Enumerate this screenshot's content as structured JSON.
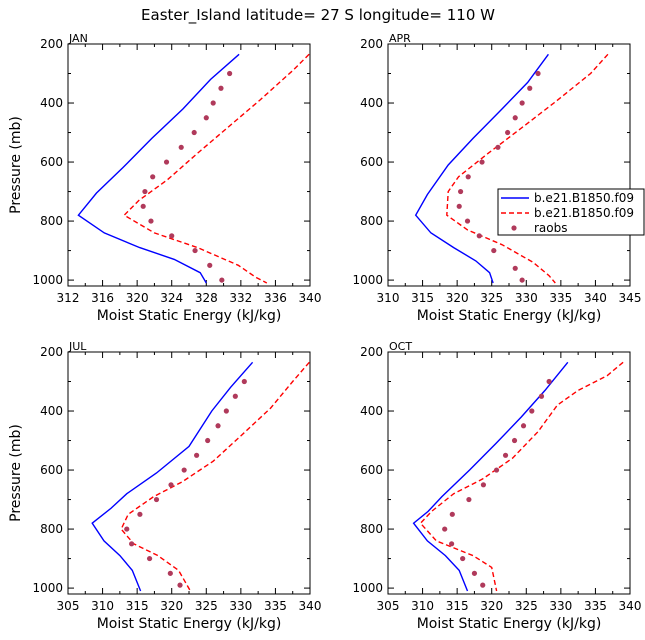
{
  "title": "Easter_Island  latitude= 27 S longitude= 110 W",
  "colors": {
    "series1": "#0000ff",
    "series2": "#ff0000",
    "raobs": "#b03a5b"
  },
  "legend": [
    {
      "label": "b.e21.B1850.f09",
      "style": "solid",
      "color": "#0000ff"
    },
    {
      "label": "b.e21.B1850.f09",
      "style": "dashed",
      "color": "#ff0000"
    },
    {
      "label": "raobs",
      "style": "dots",
      "color": "#b03a5b"
    }
  ],
  "chart_data": [
    {
      "type": "line",
      "panel": "JAN",
      "xlabel": "Moist Static Energy (kJ/kg)",
      "ylabel": "Pressure (mb)",
      "xlim": [
        312,
        340
      ],
      "xticks": [
        312,
        316,
        320,
        324,
        328,
        332,
        336,
        340
      ],
      "ylim": [
        200,
        1020
      ],
      "yticks": [
        200,
        400,
        600,
        800,
        1000
      ],
      "y_inverted": true,
      "series": [
        {
          "style": "solid",
          "color": "#0000ff",
          "points": [
            [
              331.8,
              235
            ],
            [
              328.5,
              320
            ],
            [
              325.3,
              420
            ],
            [
              321.7,
              520
            ],
            [
              318.3,
              620
            ],
            [
              315.3,
              705
            ],
            [
              313.2,
              780
            ],
            [
              316.2,
              840
            ],
            [
              320.3,
              890
            ],
            [
              324.3,
              930
            ],
            [
              327.3,
              975
            ],
            [
              328.0,
              1010
            ]
          ]
        },
        {
          "style": "dashed",
          "color": "#ff0000",
          "points": [
            [
              339.9,
              235
            ],
            [
              338.0,
              290
            ],
            [
              334.2,
              390
            ],
            [
              330.6,
              480
            ],
            [
              327.0,
              570
            ],
            [
              323.5,
              660
            ],
            [
              320.2,
              730
            ],
            [
              318.5,
              780
            ],
            [
              322.0,
              840
            ],
            [
              327.0,
              890
            ],
            [
              331.7,
              950
            ],
            [
              333.7,
              990
            ],
            [
              335.0,
              1010
            ]
          ]
        },
        {
          "style": "dots",
          "color": "#b03a5b",
          "points": [
            [
              330.7,
              300
            ],
            [
              329.7,
              350
            ],
            [
              328.8,
              400
            ],
            [
              328.0,
              450
            ],
            [
              326.6,
              500
            ],
            [
              325.1,
              550
            ],
            [
              323.4,
              600
            ],
            [
              321.8,
              650
            ],
            [
              320.9,
              700
            ],
            [
              320.7,
              750
            ],
            [
              321.6,
              800
            ],
            [
              324.0,
              850
            ],
            [
              326.7,
              900
            ],
            [
              328.4,
              950
            ],
            [
              329.8,
              1000
            ]
          ]
        }
      ]
    },
    {
      "type": "line",
      "panel": "APR",
      "xlabel": "Moist Static Energy (kJ/kg)",
      "ylabel": "",
      "xlim": [
        310,
        345
      ],
      "xticks": [
        310,
        315,
        320,
        325,
        330,
        335,
        340,
        345
      ],
      "ylim": [
        200,
        1020
      ],
      "yticks": [
        200,
        400,
        600,
        800,
        1000
      ],
      "y_inverted": true,
      "series": [
        {
          "style": "solid",
          "color": "#0000ff",
          "points": [
            [
              333.2,
              235
            ],
            [
              330.2,
              330
            ],
            [
              326.5,
              420
            ],
            [
              322.3,
              520
            ],
            [
              318.7,
              610
            ],
            [
              315.7,
              710
            ],
            [
              314.0,
              780
            ],
            [
              316.2,
              840
            ],
            [
              319.5,
              890
            ],
            [
              322.7,
              935
            ],
            [
              324.7,
              975
            ],
            [
              325.2,
              1010
            ]
          ]
        },
        {
          "style": "dashed",
          "color": "#ff0000",
          "points": [
            [
              341.8,
              235
            ],
            [
              339.3,
              300
            ],
            [
              334.0,
              400
            ],
            [
              329.0,
              490
            ],
            [
              324.5,
              570
            ],
            [
              320.2,
              650
            ],
            [
              318.7,
              700
            ],
            [
              318.5,
              780
            ],
            [
              321.5,
              830
            ],
            [
              326.5,
              880
            ],
            [
              331.0,
              940
            ],
            [
              333.3,
              985
            ],
            [
              334.2,
              1010
            ]
          ]
        },
        {
          "style": "dots",
          "color": "#b03a5b",
          "points": [
            [
              331.7,
              300
            ],
            [
              330.5,
              350
            ],
            [
              329.4,
              400
            ],
            [
              328.4,
              450
            ],
            [
              327.3,
              500
            ],
            [
              325.9,
              550
            ],
            [
              323.6,
              600
            ],
            [
              321.6,
              650
            ],
            [
              320.5,
              700
            ],
            [
              320.3,
              750
            ],
            [
              321.5,
              800
            ],
            [
              323.2,
              850
            ],
            [
              325.3,
              900
            ],
            [
              328.4,
              960
            ],
            [
              329.4,
              1000
            ]
          ]
        }
      ]
    },
    {
      "type": "line",
      "panel": "JUL",
      "xlabel": "Moist Static Energy (kJ/kg)",
      "ylabel": "Pressure (mb)",
      "xlim": [
        305,
        340
      ],
      "xticks": [
        305,
        310,
        315,
        320,
        325,
        330,
        335,
        340
      ],
      "ylim": [
        200,
        1020
      ],
      "yticks": [
        200,
        400,
        600,
        800,
        1000
      ],
      "y_inverted": true,
      "series": [
        {
          "style": "solid",
          "color": "#0000ff",
          "points": [
            [
              331.7,
              235
            ],
            [
              328.5,
              320
            ],
            [
              325.8,
              400
            ],
            [
              322.5,
              520
            ],
            [
              317.8,
              610
            ],
            [
              313.5,
              680
            ],
            [
              311.2,
              730
            ],
            [
              308.5,
              780
            ],
            [
              310.2,
              840
            ],
            [
              312.5,
              890
            ],
            [
              314.3,
              940
            ],
            [
              315.5,
              1010
            ]
          ]
        },
        {
          "style": "dashed",
          "color": "#ff0000",
          "points": [
            [
              339.9,
              235
            ],
            [
              337.5,
              300
            ],
            [
              334.3,
              390
            ],
            [
              330.2,
              480
            ],
            [
              326.0,
              570
            ],
            [
              321.5,
              640
            ],
            [
              317.4,
              690
            ],
            [
              313.7,
              750
            ],
            [
              312.7,
              800
            ],
            [
              314.5,
              850
            ],
            [
              318.0,
              890
            ],
            [
              321.0,
              940
            ],
            [
              322.7,
              1010
            ]
          ]
        },
        {
          "style": "dots",
          "color": "#b03a5b",
          "points": [
            [
              330.5,
              300
            ],
            [
              329.2,
              350
            ],
            [
              327.9,
              400
            ],
            [
              326.7,
              450
            ],
            [
              325.2,
              500
            ],
            [
              323.6,
              550
            ],
            [
              321.8,
              600
            ],
            [
              319.9,
              650
            ],
            [
              317.8,
              700
            ],
            [
              315.4,
              750
            ],
            [
              313.5,
              800
            ],
            [
              314.2,
              850
            ],
            [
              316.8,
              900
            ],
            [
              319.8,
              950
            ],
            [
              321.2,
              990
            ]
          ]
        }
      ]
    },
    {
      "type": "line",
      "panel": "OCT",
      "xlabel": "Moist Static Energy (kJ/kg)",
      "ylabel": "",
      "xlim": [
        305,
        340
      ],
      "xticks": [
        305,
        310,
        315,
        320,
        325,
        330,
        335,
        340
      ],
      "ylim": [
        200,
        1020
      ],
      "yticks": [
        200,
        400,
        600,
        800,
        1000
      ],
      "y_inverted": true,
      "series": [
        {
          "style": "solid",
          "color": "#0000ff",
          "points": [
            [
              331.0,
              235
            ],
            [
              327.7,
              330
            ],
            [
              324.3,
              420
            ],
            [
              320.6,
              510
            ],
            [
              316.8,
              600
            ],
            [
              312.8,
              690
            ],
            [
              310.8,
              740
            ],
            [
              308.7,
              780
            ],
            [
              310.7,
              840
            ],
            [
              313.3,
              890
            ],
            [
              315.3,
              940
            ],
            [
              316.5,
              1010
            ]
          ]
        },
        {
          "style": "dashed",
          "color": "#ff0000",
          "points": [
            [
              339.0,
              235
            ],
            [
              336.7,
              280
            ],
            [
              332.5,
              330
            ],
            [
              329.5,
              380
            ],
            [
              326.7,
              470
            ],
            [
              323.0,
              560
            ],
            [
              318.7,
              630
            ],
            [
              314.5,
              680
            ],
            [
              311.3,
              740
            ],
            [
              309.7,
              780
            ],
            [
              312.0,
              840
            ],
            [
              317.3,
              890
            ],
            [
              320.0,
              930
            ],
            [
              320.7,
              1010
            ]
          ]
        },
        {
          "style": "dots",
          "color": "#b03a5b",
          "points": [
            [
              328.3,
              300
            ],
            [
              327.2,
              350
            ],
            [
              325.8,
              400
            ],
            [
              324.6,
              450
            ],
            [
              323.3,
              500
            ],
            [
              322.0,
              550
            ],
            [
              320.7,
              600
            ],
            [
              318.8,
              650
            ],
            [
              316.7,
              700
            ],
            [
              314.3,
              750
            ],
            [
              313.2,
              800
            ],
            [
              314.2,
              850
            ],
            [
              315.8,
              900
            ],
            [
              317.5,
              950
            ],
            [
              318.7,
              990
            ]
          ]
        }
      ]
    }
  ]
}
